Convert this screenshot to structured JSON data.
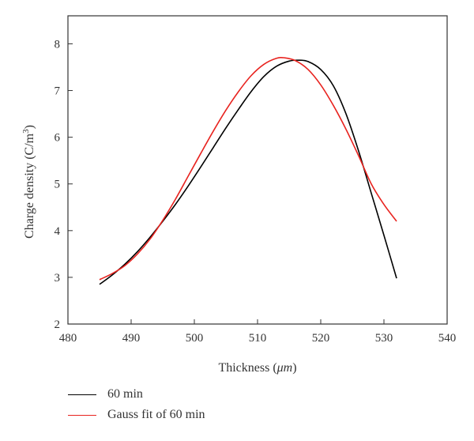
{
  "chart_data": {
    "type": "line",
    "xlabel_prefix": "Thickness (",
    "xlabel_unit": "μm",
    "xlabel_suffix": ")",
    "ylabel_main": "Charge density (C/m",
    "ylabel_sup": "3",
    "ylabel_end": ")",
    "xlim": [
      480,
      540
    ],
    "ylim": [
      2,
      8.6
    ],
    "xticks": [
      480,
      490,
      500,
      510,
      520,
      530,
      540
    ],
    "yticks": [
      2,
      3,
      4,
      5,
      6,
      7,
      8
    ],
    "grid": false,
    "legend_position": "bottom-left",
    "series": [
      {
        "name": "60 min",
        "color": "#000000",
        "x": [
          485,
          487,
          489,
          491,
          493,
          495,
          497,
          499,
          501,
          503,
          505,
          507,
          509,
          511,
          513,
          515,
          516.5,
          518,
          520,
          522,
          524,
          526,
          528,
          530,
          532
        ],
        "y": [
          2.85,
          3.05,
          3.28,
          3.55,
          3.86,
          4.2,
          4.56,
          4.95,
          5.36,
          5.78,
          6.2,
          6.6,
          6.98,
          7.3,
          7.52,
          7.63,
          7.65,
          7.62,
          7.45,
          7.1,
          6.5,
          5.7,
          4.8,
          3.9,
          2.98
        ]
      },
      {
        "name": "Gauss fit of 60 min",
        "color": "#e8231f",
        "x": [
          485,
          487,
          489,
          491,
          493,
          495,
          497,
          499,
          501,
          503,
          505,
          507,
          509,
          511,
          513,
          514.3,
          516,
          518,
          520,
          522,
          524,
          526,
          528,
          530,
          532
        ],
        "y": [
          2.95,
          3.08,
          3.25,
          3.5,
          3.82,
          4.22,
          4.67,
          5.16,
          5.65,
          6.13,
          6.58,
          6.98,
          7.32,
          7.56,
          7.69,
          7.7,
          7.64,
          7.45,
          7.12,
          6.68,
          6.17,
          5.6,
          5.0,
          4.56,
          4.2
        ]
      }
    ]
  }
}
